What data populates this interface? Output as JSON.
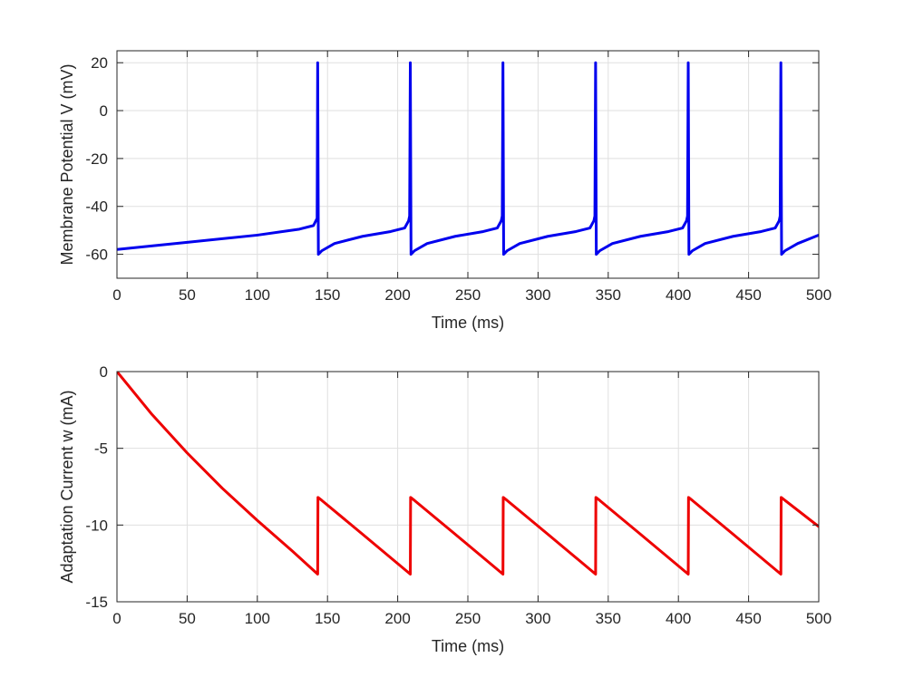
{
  "chart_data": [
    {
      "type": "line",
      "xlabel": "Time (ms)",
      "ylabel": "Membrane Potential V (mV)",
      "xlim": [
        0,
        500
      ],
      "ylim": [
        -70,
        25
      ],
      "xticks": [
        0,
        50,
        100,
        150,
        200,
        250,
        300,
        350,
        400,
        450,
        500
      ],
      "yticks": [
        -60,
        -40,
        -20,
        0,
        20
      ],
      "grid": true,
      "color": "#0000ee",
      "series": [
        {
          "x": [
            0,
            50,
            100,
            130,
            140,
            142.6,
            143,
            143.5,
            146,
            155,
            175,
            195,
            205,
            207.8,
            208.5,
            209,
            209.5,
            212,
            221,
            241,
            261,
            271,
            273.8,
            274.5,
            275,
            275.5,
            278,
            287,
            307,
            327,
            337,
            339.8,
            340.5,
            341,
            341.5,
            344,
            353,
            373,
            393,
            403,
            405.8,
            406.5,
            407,
            407.5,
            410,
            419,
            439,
            459,
            469,
            471.8,
            472.5,
            473,
            473.5,
            476,
            485,
            500
          ],
          "y": [
            -58,
            -55,
            -52,
            -49.5,
            -48,
            -45,
            20,
            -60,
            -58.5,
            -55.5,
            -52.5,
            -50.5,
            -49,
            -46,
            -44,
            20,
            -60,
            -58.5,
            -55.5,
            -52.5,
            -50.5,
            -49,
            -46,
            -44,
            20,
            -60,
            -58.5,
            -55.5,
            -52.5,
            -50.5,
            -49,
            -46,
            -44,
            20,
            -60,
            -58.5,
            -55.5,
            -52.5,
            -50.5,
            -49,
            -46,
            -44,
            20,
            -60,
            -58.5,
            -55.5,
            -52.5,
            -50.5,
            -49,
            -46,
            -44,
            20,
            -60,
            -58.5,
            -55.5,
            -52
          ]
        }
      ]
    },
    {
      "type": "line",
      "xlabel": "Time (ms)",
      "ylabel": "Adaptation Current w (mA)",
      "xlim": [
        0,
        500
      ],
      "ylim": [
        -15,
        0
      ],
      "xticks": [
        0,
        50,
        100,
        150,
        200,
        250,
        300,
        350,
        400,
        450,
        500
      ],
      "yticks": [
        -15,
        -10,
        -5,
        0
      ],
      "grid": true,
      "color": "#ee0000",
      "series": [
        {
          "x": [
            0,
            25,
            50,
            75,
            100,
            125,
            143,
            143.2,
            146,
            175,
            209,
            209.2,
            212,
            241,
            275,
            275.2,
            278,
            307,
            341,
            341.2,
            344,
            373,
            407,
            407.2,
            410,
            439,
            473,
            473.2,
            476,
            500
          ],
          "y": [
            0,
            -2.8,
            -5.3,
            -7.6,
            -9.7,
            -11.7,
            -13.2,
            -8.2,
            -8.4,
            -10.6,
            -13.2,
            -8.2,
            -8.4,
            -10.6,
            -13.2,
            -8.2,
            -8.4,
            -10.6,
            -13.2,
            -8.2,
            -8.4,
            -10.6,
            -13.2,
            -8.2,
            -8.4,
            -10.6,
            -13.2,
            -8.2,
            -8.4,
            -10.1
          ]
        }
      ]
    }
  ]
}
